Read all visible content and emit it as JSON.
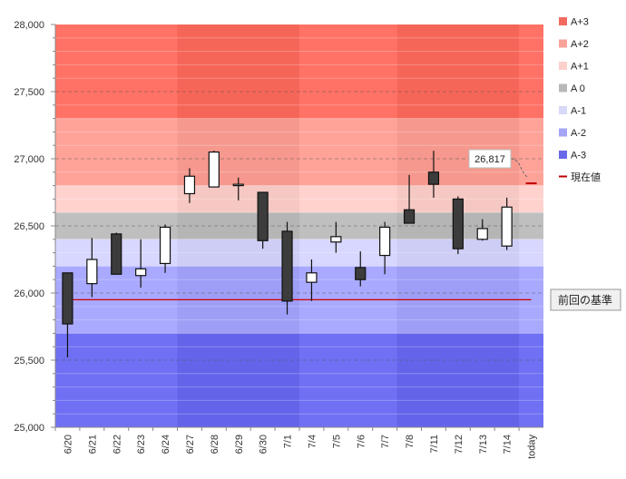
{
  "chart_data": {
    "type": "candlestick",
    "ylim": [
      25000,
      28000
    ],
    "yticks": [
      25000,
      25500,
      26000,
      26500,
      27000,
      27500,
      28000
    ],
    "ytick_labels": [
      "25,000",
      "25,500",
      "26,000",
      "26,500",
      "27,000",
      "27,500",
      "28,000"
    ],
    "categories": [
      "6/20",
      "6/21",
      "6/22",
      "6/23",
      "6/24",
      "6/27",
      "6/28",
      "6/29",
      "6/30",
      "7/1",
      "7/4",
      "7/5",
      "7/6",
      "7/7",
      "7/8",
      "7/11",
      "7/12",
      "7/13",
      "7/14",
      "today"
    ],
    "candles": [
      {
        "date": "6/20",
        "open": 26150,
        "close": 25770,
        "high": 26150,
        "low": 25520
      },
      {
        "date": "6/21",
        "open": 26070,
        "close": 26250,
        "high": 26410,
        "low": 25970
      },
      {
        "date": "6/22",
        "open": 26440,
        "close": 26140,
        "high": 26450,
        "low": 26140
      },
      {
        "date": "6/23",
        "open": 26130,
        "close": 26180,
        "high": 26400,
        "low": 26040
      },
      {
        "date": "6/24",
        "open": 26220,
        "close": 26490,
        "high": 26510,
        "low": 26150
      },
      {
        "date": "6/27",
        "open": 26740,
        "close": 26870,
        "high": 26930,
        "low": 26670
      },
      {
        "date": "6/28",
        "open": 26790,
        "close": 27050,
        "high": 27060,
        "low": 26790
      },
      {
        "date": "6/29",
        "open": 26810,
        "close": 26810,
        "high": 26860,
        "low": 26690
      },
      {
        "date": "6/30",
        "open": 26750,
        "close": 26390,
        "high": 26750,
        "low": 26330
      },
      {
        "date": "7/1",
        "open": 26460,
        "close": 25940,
        "high": 26530,
        "low": 25840
      },
      {
        "date": "7/4",
        "open": 26080,
        "close": 26150,
        "high": 26250,
        "low": 25940
      },
      {
        "date": "7/5",
        "open": 26380,
        "close": 26420,
        "high": 26530,
        "low": 26300
      },
      {
        "date": "7/6",
        "open": 26190,
        "close": 26100,
        "high": 26310,
        "low": 26050
      },
      {
        "date": "7/7",
        "open": 26280,
        "close": 26490,
        "high": 26530,
        "low": 26140
      },
      {
        "date": "7/8",
        "open": 26620,
        "close": 26520,
        "high": 26880,
        "low": 26520
      },
      {
        "date": "7/11",
        "open": 26900,
        "close": 26810,
        "high": 27060,
        "low": 26710
      },
      {
        "date": "7/12",
        "open": 26700,
        "close": 26330,
        "high": 26720,
        "low": 26290
      },
      {
        "date": "7/13",
        "open": 26400,
        "close": 26480,
        "high": 26550,
        "low": 26390
      },
      {
        "date": "7/14",
        "open": 26350,
        "close": 26640,
        "high": 26710,
        "low": 26320
      },
      {
        "date": "today",
        "open": null,
        "close": null,
        "high": null,
        "low": null
      }
    ],
    "bands": [
      {
        "name": "A+3",
        "from": 27300,
        "to": 28000,
        "color": "#ff6a5c"
      },
      {
        "name": "A+2",
        "from": 26800,
        "to": 27300,
        "color": "#ff9e93"
      },
      {
        "name": "A+1",
        "from": 26600,
        "to": 26800,
        "color": "#ffd0cb"
      },
      {
        "name": "A 0",
        "from": 26400,
        "to": 26600,
        "color": "#bcbcbc"
      },
      {
        "name": "A-1",
        "from": 26200,
        "to": 26400,
        "color": "#d5d5ff"
      },
      {
        "name": "A-2",
        "from": 25700,
        "to": 26200,
        "color": "#a4a4ff"
      },
      {
        "name": "A-3",
        "from": 25000,
        "to": 25700,
        "color": "#6868f4"
      }
    ],
    "legend": [
      {
        "name": "A+3",
        "color": "#f26a5f"
      },
      {
        "name": "A+2",
        "color": "#f8a299"
      },
      {
        "name": "A+1",
        "color": "#fcd0cb"
      },
      {
        "name": "A 0",
        "color": "#b8b8b8"
      },
      {
        "name": "A-1",
        "color": "#d8d8f8"
      },
      {
        "name": "A-2",
        "color": "#a5a5f5"
      },
      {
        "name": "A-3",
        "color": "#6868e8"
      },
      {
        "name": "現在値",
        "color": "#c00000",
        "marker": "line"
      }
    ],
    "legend_position": "right",
    "current_value": 26817,
    "current_value_label": "26,817",
    "reference_line": {
      "value": 25950,
      "label": "前回の基準",
      "color": "#d00000"
    },
    "grid": true
  }
}
